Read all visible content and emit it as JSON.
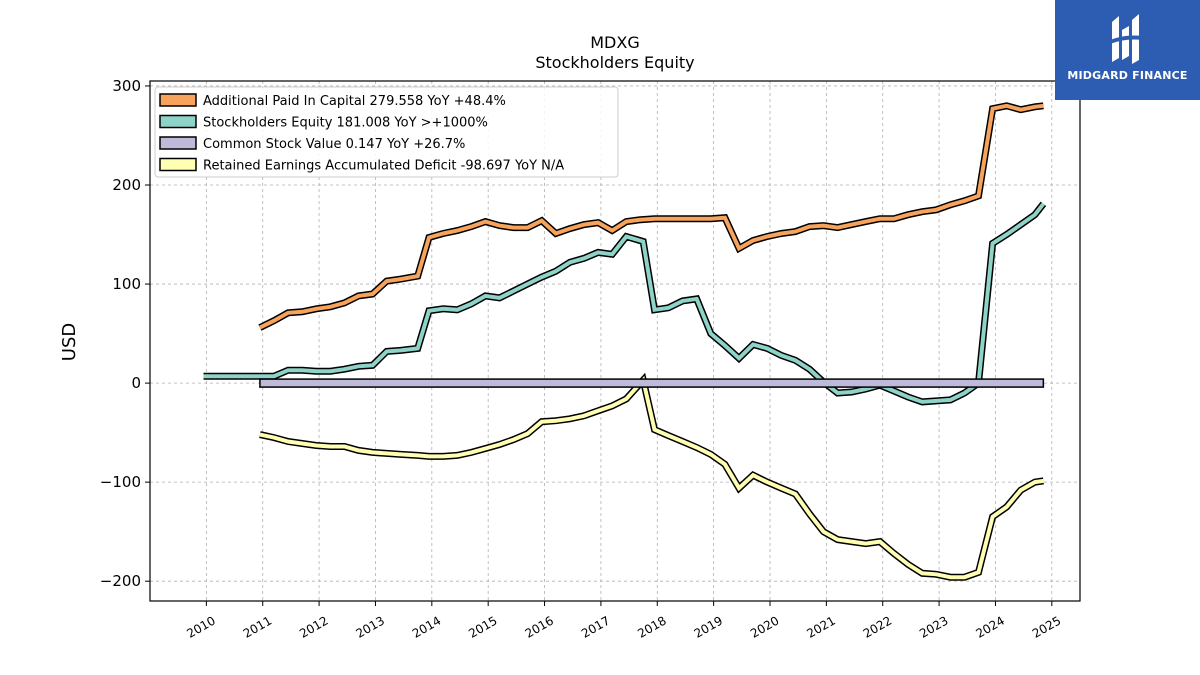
{
  "chart_data": {
    "type": "line",
    "title": "MDXG",
    "subtitle": "Stockholders  Equity",
    "ylabel": "USD",
    "xlabel": "",
    "xlim": [
      2009.0,
      2025.5
    ],
    "ylim": [
      -220,
      305
    ],
    "yticks": [
      -200,
      -100,
      0,
      100,
      200,
      300
    ],
    "ytick_labels": [
      "−200",
      "−100",
      "0",
      "100",
      "200",
      "300"
    ],
    "xticks": [
      2010,
      2011,
      2012,
      2013,
      2014,
      2015,
      2016,
      2017,
      2018,
      2019,
      2020,
      2021,
      2022,
      2023,
      2024,
      2025
    ],
    "xtick_labels": [
      "2010",
      "2011",
      "2012",
      "2013",
      "2014",
      "2015",
      "2016",
      "2017",
      "2018",
      "2019",
      "2020",
      "2021",
      "2022",
      "2023",
      "2024",
      "2025"
    ],
    "grid": true,
    "legend_position": "top-left",
    "series": [
      {
        "name": "Additional Paid In Capital  279.558 YoY +48.4%",
        "color": "#f7a35c",
        "x": [
          2010.95,
          2011.2,
          2011.45,
          2011.7,
          2011.95,
          2012.2,
          2012.45,
          2012.7,
          2012.95,
          2013.2,
          2013.45,
          2013.75,
          2013.95,
          2014.2,
          2014.45,
          2014.7,
          2014.95,
          2015.2,
          2015.45,
          2015.7,
          2015.95,
          2016.2,
          2016.45,
          2016.7,
          2016.95,
          2017.2,
          2017.45,
          2017.7,
          2017.95,
          2018.2,
          2018.45,
          2018.7,
          2018.95,
          2019.2,
          2019.45,
          2019.7,
          2019.95,
          2020.2,
          2020.45,
          2020.7,
          2020.95,
          2021.2,
          2021.45,
          2021.7,
          2021.95,
          2022.2,
          2022.45,
          2022.7,
          2022.95,
          2023.2,
          2023.45,
          2023.7,
          2023.95,
          2024.2,
          2024.45,
          2024.7,
          2024.85
        ],
        "values": [
          56,
          63,
          71,
          72,
          75,
          77,
          81,
          88,
          90,
          103,
          105,
          108,
          147,
          151,
          154,
          158,
          163,
          159,
          157,
          157,
          164,
          151,
          156,
          160,
          162,
          154,
          163,
          165,
          166,
          166,
          166,
          166,
          166,
          167,
          136,
          144,
          148,
          151,
          153,
          158,
          159,
          157,
          160,
          163,
          166,
          166,
          170,
          173,
          175,
          180,
          184,
          189,
          277,
          280,
          276,
          279,
          280
        ]
      },
      {
        "name": "Stockholders Equity  181.008 YoY >+1000%",
        "color": "#8dd3c7",
        "x": [
          2009.95,
          2010.45,
          2010.95,
          2011.2,
          2011.45,
          2011.7,
          2011.95,
          2012.2,
          2012.45,
          2012.7,
          2012.95,
          2013.2,
          2013.45,
          2013.75,
          2013.95,
          2014.2,
          2014.45,
          2014.7,
          2014.95,
          2015.2,
          2015.45,
          2015.7,
          2015.95,
          2016.2,
          2016.45,
          2016.7,
          2016.95,
          2017.2,
          2017.45,
          2017.75,
          2017.95,
          2018.2,
          2018.45,
          2018.7,
          2018.95,
          2019.2,
          2019.45,
          2019.7,
          2019.95,
          2020.2,
          2020.45,
          2020.7,
          2020.95,
          2021.2,
          2021.45,
          2021.7,
          2021.95,
          2022.2,
          2022.45,
          2022.7,
          2022.95,
          2023.2,
          2023.45,
          2023.7,
          2023.95,
          2024.2,
          2024.45,
          2024.7,
          2024.85
        ],
        "values": [
          7,
          7,
          7,
          7,
          13,
          13,
          12,
          12,
          14,
          17,
          18,
          32,
          33,
          35,
          73,
          75,
          74,
          80,
          88,
          86,
          93,
          100,
          107,
          113,
          122,
          126,
          132,
          130,
          148,
          143,
          74,
          76,
          83,
          85,
          50,
          38,
          25,
          39,
          35,
          28,
          23,
          14,
          1,
          -10,
          -9,
          -6,
          -2,
          -8,
          -14,
          -19,
          -18,
          -17,
          -10,
          0,
          141,
          150,
          160,
          170,
          181
        ]
      },
      {
        "name": "Common Stock Value  0.147 YoY +26.7%",
        "color": "#bebada",
        "x": [
          2010.95,
          2024.85
        ],
        "values": [
          0.1,
          0.147
        ]
      },
      {
        "name": "Retained Earnings Accumulated Deficit  -98.697 YoY N/A",
        "color": "#ffffb3",
        "x": [
          2010.95,
          2011.2,
          2011.45,
          2011.7,
          2011.95,
          2012.2,
          2012.45,
          2012.7,
          2012.95,
          2013.2,
          2013.45,
          2013.75,
          2013.95,
          2014.2,
          2014.45,
          2014.7,
          2014.95,
          2015.2,
          2015.45,
          2015.7,
          2015.95,
          2016.2,
          2016.45,
          2016.7,
          2016.95,
          2017.2,
          2017.45,
          2017.75,
          2017.95,
          2018.2,
          2018.45,
          2018.7,
          2018.95,
          2019.2,
          2019.45,
          2019.7,
          2019.95,
          2020.2,
          2020.45,
          2020.7,
          2020.95,
          2021.2,
          2021.45,
          2021.7,
          2021.95,
          2022.2,
          2022.45,
          2022.7,
          2022.95,
          2023.2,
          2023.45,
          2023.7,
          2023.95,
          2024.2,
          2024.45,
          2024.7,
          2024.85
        ],
        "values": [
          -52,
          -55,
          -59,
          -61,
          -63,
          -64,
          -64,
          -68,
          -70,
          -71,
          -72,
          -73,
          -74,
          -74,
          -73,
          -70,
          -66,
          -62,
          -57,
          -51,
          -39,
          -38,
          -36,
          -33,
          -28,
          -23,
          -16,
          3,
          -47,
          -53,
          -59,
          -65,
          -72,
          -82,
          -106,
          -93,
          -100,
          -106,
          -112,
          -132,
          -150,
          -158,
          -160,
          -162,
          -160,
          -172,
          -183,
          -192,
          -193,
          -196,
          -196,
          -191,
          -135,
          -125,
          -108,
          -100,
          -98.697
        ]
      }
    ]
  },
  "brand": {
    "name": "MIDGARD FINANCE",
    "color": "#2d5cb3"
  }
}
